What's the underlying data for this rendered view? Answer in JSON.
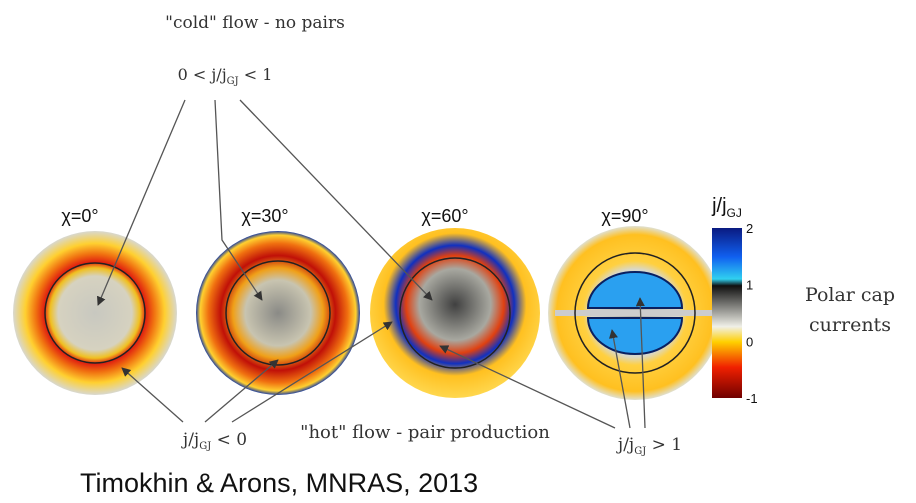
{
  "header": {
    "title": "\"cold\" flow - no pairs",
    "condition": {
      "pre": "0 < j/j",
      "sub": "GJ",
      "post": " < 1"
    }
  },
  "panels": [
    {
      "label": "χ=0°"
    },
    {
      "label": "χ=30°"
    },
    {
      "label": "χ=60°"
    },
    {
      "label": "χ=90°"
    }
  ],
  "colorbar": {
    "title": {
      "pre": "j/j",
      "sub": "GJ"
    },
    "ticks": [
      "2",
      "1",
      "0",
      "-1"
    ]
  },
  "side_label": {
    "lines": [
      "Polar cap",
      "currents"
    ]
  },
  "annotations": {
    "negative": {
      "pre": "j/j",
      "sub": "GJ",
      "post": " < 0"
    },
    "hot": "\"hot\" flow - pair production",
    "above_one": {
      "pre": "j/j",
      "sub": "GJ",
      "post": " > 1"
    }
  },
  "citation": "Timokhin & Arons, MNRAS, 2013"
}
